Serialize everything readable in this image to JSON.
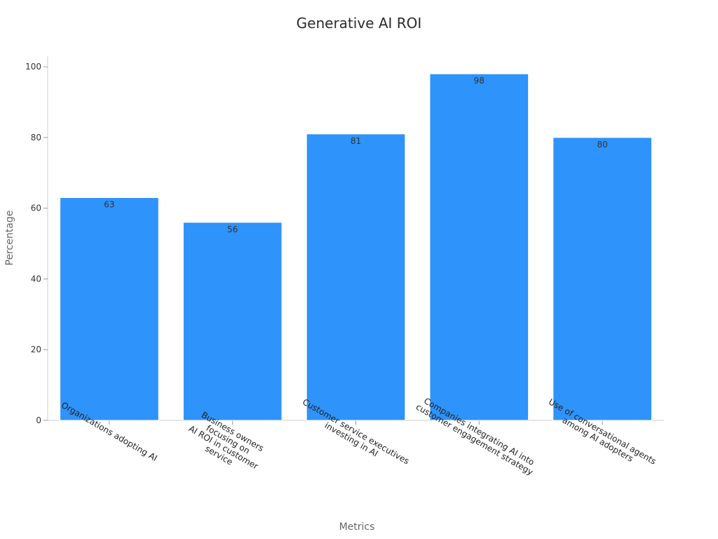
{
  "chart_data": {
    "type": "bar",
    "title": "Generative AI ROI",
    "xlabel": "Metrics",
    "ylabel": "Percentage",
    "ylim": [
      0,
      103
    ],
    "yticks": [
      0,
      20,
      40,
      60,
      80,
      100
    ],
    "grid": false,
    "bar_color": "#2e93fa",
    "categories": [
      [
        "Organizations adopting AI"
      ],
      [
        "Business owners",
        "focusing on",
        "AI ROI in customer",
        "service"
      ],
      [
        "Customer service executives",
        "investing in AI"
      ],
      [
        "Companies integrating AI into",
        "customer engagement strategy"
      ],
      [
        "Use of conversational agents",
        "among AI adopters"
      ]
    ],
    "values": [
      63,
      56,
      81,
      98,
      80
    ]
  }
}
